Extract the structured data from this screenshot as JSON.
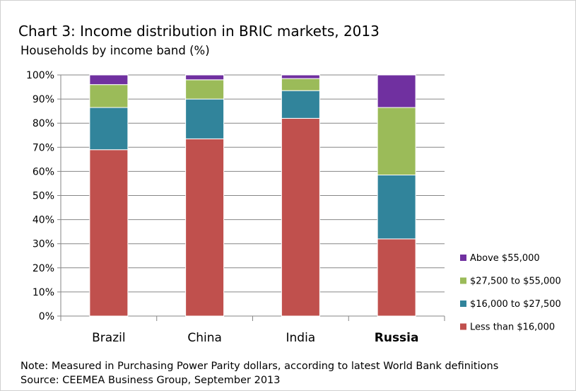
{
  "chart_data": {
    "type": "bar",
    "stacked": true,
    "title": "Chart 3: Income distribution in BRIC markets, 2013",
    "subtitle": "Households by income band (%)",
    "categories": [
      "Brazil",
      "China",
      "India",
      "Russia"
    ],
    "bold_categories": [
      "Russia"
    ],
    "y_ticks": [
      "0%",
      "10%",
      "20%",
      "30%",
      "40%",
      "50%",
      "60%",
      "70%",
      "80%",
      "90%",
      "100%"
    ],
    "ylim": [
      0,
      100
    ],
    "grid": true,
    "legend_position": "right",
    "series": [
      {
        "name": "Less than $16,000",
        "color": "#c0504d",
        "values": [
          69,
          73.5,
          82,
          32
        ]
      },
      {
        "name": "$16,000 to $27,500",
        "color": "#31849b",
        "values": [
          17.5,
          16.5,
          11.5,
          26.5
        ]
      },
      {
        "name": "$27,500 to $55,000",
        "color": "#9bbb59",
        "values": [
          9.5,
          8,
          5,
          28
        ]
      },
      {
        "name": "Above $55,000",
        "color": "#7030a0",
        "values": [
          4,
          2,
          1.5,
          13.5
        ]
      }
    ],
    "note": "Note: Measured in Purchasing Power Parity dollars, according to latest World Bank definitions",
    "source": "Source: CEEMEA Business Group, September 2013"
  }
}
